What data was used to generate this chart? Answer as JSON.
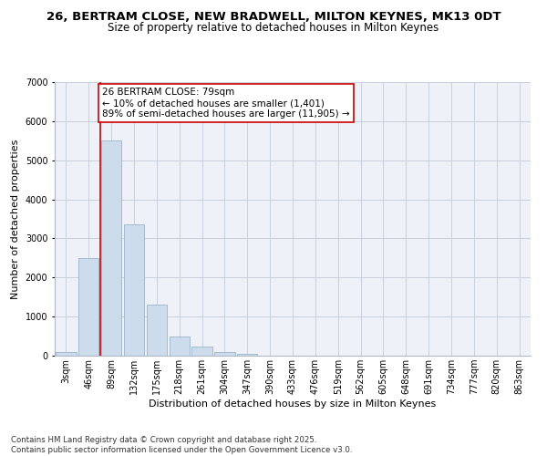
{
  "title": "26, BERTRAM CLOSE, NEW BRADWELL, MILTON KEYNES, MK13 0DT",
  "subtitle": "Size of property relative to detached houses in Milton Keynes",
  "xlabel": "Distribution of detached houses by size in Milton Keynes",
  "ylabel": "Number of detached properties",
  "bar_color": "#ccdcec",
  "bar_edge_color": "#9ab4cc",
  "grid_color": "#c8d0dc",
  "bg_color": "#eef2f8",
  "categories": [
    "3sqm",
    "46sqm",
    "89sqm",
    "132sqm",
    "175sqm",
    "218sqm",
    "261sqm",
    "304sqm",
    "347sqm",
    "390sqm",
    "433sqm",
    "476sqm",
    "519sqm",
    "562sqm",
    "605sqm",
    "648sqm",
    "691sqm",
    "734sqm",
    "777sqm",
    "820sqm",
    "863sqm"
  ],
  "values": [
    100,
    2500,
    5500,
    3350,
    1300,
    480,
    230,
    100,
    50,
    5,
    2,
    1,
    0,
    0,
    0,
    0,
    0,
    0,
    0,
    0,
    0
  ],
  "vline_x": 1.5,
  "vline_color": "#cc0000",
  "annotation_text": "26 BERTRAM CLOSE: 79sqm\n← 10% of detached houses are smaller (1,401)\n89% of semi-detached houses are larger (11,905) →",
  "annotation_box_color": "#ffffff",
  "annotation_box_edge": "#cc0000",
  "footnote": "Contains HM Land Registry data © Crown copyright and database right 2025.\nContains public sector information licensed under the Open Government Licence v3.0.",
  "ylim": [
    0,
    7000
  ],
  "yticks": [
    0,
    1000,
    2000,
    3000,
    4000,
    5000,
    6000,
    7000
  ],
  "title_fontsize": 9.5,
  "subtitle_fontsize": 8.5,
  "axis_label_fontsize": 8,
  "tick_fontsize": 7,
  "annotation_fontsize": 7.5,
  "footnote_fontsize": 6.2
}
